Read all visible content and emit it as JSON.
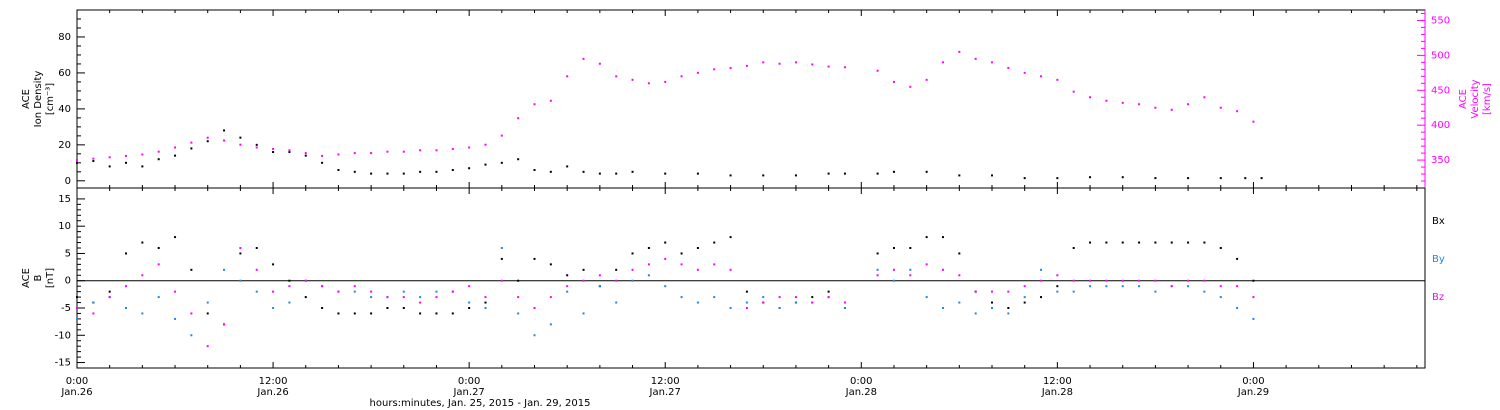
{
  "colors": {
    "axis": "#000000",
    "density": "#000000",
    "velocity": "#ff00ff",
    "bx": "#000000",
    "by": "#1e88e5",
    "bz": "#ff00ff"
  },
  "xaxis": {
    "title": "hours:minutes, Jan. 25, 2015 - Jan. 29, 2015",
    "range_hours": [
      0,
      82.5
    ],
    "ticks": [
      {
        "hour": 0,
        "time": "0:00",
        "date": "Jan.26"
      },
      {
        "hour": 12,
        "time": "12:00",
        "date": "Jan.26"
      },
      {
        "hour": 24,
        "time": "0:00",
        "date": "Jan.27"
      },
      {
        "hour": 36,
        "time": "12:00",
        "date": "Jan.27"
      },
      {
        "hour": 48,
        "time": "0:00",
        "date": "Jan.28"
      },
      {
        "hour": 60,
        "time": "12:00",
        "date": "Jan.28"
      },
      {
        "hour": 72,
        "time": "0:00",
        "date": "Jan.29"
      }
    ]
  },
  "chart_data": [
    {
      "type": "scatter",
      "panel": "top",
      "left_axis": {
        "label_lines": [
          "ACE",
          "Ion Density",
          "[cm⁻³]"
        ],
        "ylim": [
          -4,
          95
        ],
        "ticks": [
          0,
          20,
          40,
          60,
          80
        ]
      },
      "right_axis": {
        "label_lines": [
          "ACE",
          "Velocity",
          "[km/s]"
        ],
        "ylim": [
          310,
          565
        ],
        "ticks": [
          350,
          400,
          450,
          500,
          550
        ]
      },
      "series": [
        {
          "key": "density",
          "axis": "left",
          "x": [
            0,
            1,
            2,
            3,
            4,
            5,
            6,
            7,
            8,
            9,
            10,
            11,
            12,
            13,
            14,
            15,
            16,
            17,
            18,
            19,
            20,
            21,
            22,
            23,
            24,
            25,
            26,
            27,
            28,
            29,
            30,
            31,
            32,
            33,
            34,
            36,
            38,
            40,
            42,
            44,
            46,
            47,
            49,
            50,
            52,
            54,
            56,
            58,
            60,
            62,
            64,
            66,
            68,
            70,
            71.5,
            72.5
          ],
          "y": [
            10,
            11,
            8,
            10,
            8,
            12,
            14,
            18,
            22,
            28,
            24,
            20,
            16,
            16,
            14,
            10,
            6,
            5,
            4,
            4,
            4,
            5,
            5,
            6,
            7,
            9,
            10,
            12,
            6,
            5,
            8,
            5,
            4,
            4,
            5,
            4,
            4,
            3,
            3,
            3,
            4,
            4,
            4,
            5,
            5,
            3,
            3,
            1.5,
            1.5,
            2,
            2,
            1.5,
            1.5,
            1.5,
            1.5,
            1.5
          ]
        },
        {
          "key": "velocity",
          "axis": "right",
          "x": [
            0,
            1,
            2,
            3,
            4,
            5,
            6,
            7,
            8,
            9,
            10,
            11,
            12,
            13,
            14,
            15,
            16,
            17,
            18,
            19,
            20,
            21,
            22,
            23,
            24,
            25,
            26,
            27,
            28,
            29,
            30,
            31,
            32,
            33,
            34,
            35,
            36,
            37,
            38,
            39,
            40,
            41,
            42,
            43,
            44,
            45,
            46,
            47,
            49,
            50,
            51,
            52,
            53,
            54,
            55,
            56,
            57,
            58,
            59,
            60,
            61,
            62,
            63,
            64,
            65,
            66,
            67,
            68,
            69,
            70,
            71,
            72
          ],
          "y": [
            350,
            352,
            354,
            356,
            358,
            362,
            368,
            375,
            382,
            378,
            372,
            368,
            366,
            364,
            360,
            356,
            358,
            360,
            360,
            362,
            362,
            364,
            364,
            366,
            368,
            372,
            385,
            410,
            430,
            435,
            470,
            495,
            488,
            470,
            465,
            460,
            462,
            470,
            475,
            480,
            482,
            485,
            490,
            488,
            490,
            487,
            484,
            483,
            478,
            462,
            455,
            465,
            490,
            505,
            495,
            490,
            482,
            475,
            470,
            465,
            448,
            440,
            435,
            432,
            430,
            425,
            422,
            430,
            440,
            425,
            420,
            405
          ]
        }
      ]
    },
    {
      "type": "scatter",
      "panel": "bottom",
      "left_axis": {
        "label_lines": [
          "ACE",
          "B",
          "[nT]"
        ],
        "ylim": [
          -16,
          17
        ],
        "ticks": [
          -15,
          -10,
          -5,
          0,
          5,
          10,
          15
        ]
      },
      "zero_line": 0,
      "legend_position": "right",
      "legend": [
        "Bx",
        "By",
        "Bz"
      ],
      "series": [
        {
          "key": "bx",
          "name": "Bx",
          "x": [
            0,
            1,
            2,
            3,
            4,
            5,
            6,
            7,
            8,
            9,
            10,
            11,
            12,
            13,
            14,
            15,
            16,
            17,
            18,
            19,
            20,
            21,
            22,
            23,
            24,
            25,
            26,
            27,
            28,
            29,
            30,
            31,
            32,
            33,
            34,
            35,
            36,
            37,
            38,
            39,
            40,
            41,
            42,
            43,
            44,
            45,
            46,
            47,
            49,
            50,
            51,
            52,
            53,
            54,
            55,
            56,
            57,
            58,
            59,
            60,
            61,
            62,
            63,
            64,
            65,
            66,
            67,
            68,
            69,
            70,
            71,
            72
          ],
          "y": [
            -3,
            -4,
            -2,
            5,
            7,
            6,
            8,
            2,
            -6,
            -8,
            5,
            6,
            3,
            0,
            -3,
            -5,
            -6,
            -6,
            -6,
            -5,
            -5,
            -6,
            -6,
            -6,
            -5,
            -4,
            4,
            0,
            4,
            3,
            1,
            2,
            -1,
            2,
            5,
            6,
            7,
            5,
            6,
            7,
            8,
            -2,
            -4,
            -5,
            -4,
            -3,
            -2,
            -5,
            5,
            6,
            6,
            8,
            8,
            5,
            -2,
            -4,
            -5,
            -4,
            -3,
            -1,
            6,
            7,
            7,
            7,
            7,
            7,
            7,
            7,
            7,
            6,
            4,
            0
          ]
        },
        {
          "key": "by",
          "name": "By",
          "x": [
            0,
            1,
            2,
            3,
            4,
            5,
            6,
            7,
            8,
            9,
            10,
            11,
            12,
            13,
            14,
            15,
            16,
            17,
            18,
            19,
            20,
            21,
            22,
            23,
            24,
            25,
            26,
            27,
            28,
            29,
            30,
            31,
            32,
            33,
            34,
            35,
            36,
            37,
            38,
            39,
            40,
            41,
            42,
            43,
            44,
            45,
            46,
            47,
            49,
            50,
            51,
            52,
            53,
            54,
            55,
            56,
            57,
            58,
            59,
            60,
            61,
            62,
            63,
            64,
            65,
            66,
            67,
            68,
            69,
            70,
            71,
            72
          ],
          "y": [
            -7,
            -4,
            -3,
            -5,
            -6,
            -3,
            -7,
            -10,
            -4,
            2,
            0,
            -2,
            -5,
            -4,
            0,
            -1,
            -2,
            -2,
            -3,
            -3,
            -2,
            -3,
            -2,
            -2,
            -4,
            -5,
            6,
            -6,
            -10,
            -8,
            -2,
            -6,
            -1,
            -4,
            0,
            1,
            -1,
            -3,
            -4,
            -3,
            -5,
            -4,
            -3,
            -5,
            -4,
            -4,
            -3,
            -5,
            2,
            0,
            2,
            -3,
            -5,
            -4,
            -6,
            -5,
            -6,
            -3,
            2,
            -2,
            -2,
            -1,
            -1,
            -1,
            -1,
            -2,
            -1,
            -1,
            -2,
            -3,
            -5,
            -7
          ]
        },
        {
          "key": "bz",
          "name": "Bz",
          "x": [
            0,
            1,
            2,
            3,
            4,
            5,
            6,
            7,
            8,
            9,
            10,
            11,
            12,
            13,
            14,
            15,
            16,
            17,
            18,
            19,
            20,
            21,
            22,
            23,
            24,
            25,
            26,
            27,
            28,
            29,
            30,
            31,
            32,
            33,
            34,
            35,
            36,
            37,
            38,
            39,
            40,
            41,
            42,
            43,
            44,
            45,
            46,
            47,
            49,
            50,
            51,
            52,
            53,
            54,
            55,
            56,
            57,
            58,
            59,
            60,
            61,
            62,
            63,
            64,
            65,
            66,
            67,
            68,
            69,
            70,
            71,
            72
          ],
          "y": [
            -5,
            -6,
            -3,
            -1,
            1,
            3,
            -2,
            -6,
            -12,
            -8,
            6,
            2,
            -2,
            -1,
            0,
            -1,
            -2,
            -1,
            -2,
            -3,
            -3,
            -4,
            -3,
            -2,
            -1,
            -3,
            0,
            -3,
            -5,
            -3,
            -1,
            0,
            1,
            0,
            2,
            3,
            4,
            3,
            2,
            3,
            2,
            -5,
            -4,
            -3,
            -3,
            -4,
            -3,
            -4,
            1,
            2,
            1,
            3,
            2,
            1,
            -2,
            -2,
            -2,
            -1,
            0,
            1,
            0,
            0,
            0,
            0,
            0,
            0,
            -1,
            0,
            0,
            -1,
            -1,
            -3
          ]
        }
      ]
    }
  ]
}
